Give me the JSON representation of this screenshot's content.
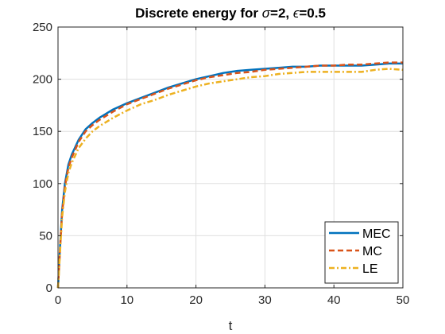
{
  "chart_data": {
    "type": "line",
    "title_prefix": "Discrete energy for ",
    "title_sigma_symbol": "σ",
    "title_sigma_value": "=2, ",
    "title_eps_symbol": "ϵ",
    "title_eps_value": "=0.5",
    "xlabel": "t",
    "ylabel": "",
    "xlim": [
      0,
      50
    ],
    "ylim": [
      0,
      250
    ],
    "xticks": [
      0,
      10,
      20,
      30,
      40,
      50
    ],
    "yticks": [
      0,
      50,
      100,
      150,
      200,
      250
    ],
    "grid": true,
    "legend_position": "bottom-right",
    "series": [
      {
        "name": "MEC",
        "color": "#0072BD",
        "style": "solid",
        "x": [
          0,
          0.3,
          0.6,
          1,
          1.5,
          2,
          3,
          4,
          5,
          6,
          8,
          10,
          12,
          14,
          16,
          18,
          20,
          22,
          24,
          26,
          28,
          30,
          32,
          34,
          36,
          38,
          40,
          42,
          44,
          46,
          48,
          50
        ],
        "y": [
          0,
          40,
          75,
          100,
          118,
          128,
          142,
          152,
          158,
          163,
          171,
          177,
          182,
          187,
          192,
          196,
          200,
          203,
          206,
          208,
          209,
          210,
          211,
          212,
          212,
          213,
          213,
          213,
          213,
          214,
          215,
          215
        ]
      },
      {
        "name": "MC",
        "color": "#D95319",
        "style": "dashed",
        "x": [
          0,
          0.3,
          0.6,
          1,
          1.5,
          2,
          3,
          4,
          5,
          6,
          8,
          10,
          12,
          14,
          16,
          18,
          20,
          22,
          24,
          26,
          28,
          30,
          32,
          34,
          36,
          38,
          40,
          42,
          44,
          46,
          48,
          50
        ],
        "y": [
          0,
          38,
          72,
          97,
          115,
          125,
          140,
          150,
          156,
          161,
          169,
          176,
          181,
          186,
          191,
          195,
          199,
          202,
          204,
          206,
          207,
          209,
          210,
          211,
          212,
          213,
          213,
          214,
          214,
          215,
          216,
          216
        ]
      },
      {
        "name": "LE",
        "color": "#EDB120",
        "style": "dashdot",
        "x": [
          0,
          0.3,
          0.6,
          1,
          1.5,
          2,
          3,
          4,
          5,
          6,
          8,
          10,
          12,
          14,
          16,
          18,
          20,
          22,
          24,
          26,
          28,
          30,
          32,
          34,
          36,
          38,
          40,
          42,
          44,
          46,
          48,
          50
        ],
        "y": [
          0,
          35,
          68,
          92,
          110,
          120,
          134,
          143,
          150,
          155,
          163,
          170,
          176,
          180,
          185,
          189,
          193,
          196,
          198,
          200,
          202,
          203,
          205,
          206,
          207,
          207,
          207,
          207,
          207,
          209,
          210,
          209
        ]
      }
    ]
  }
}
